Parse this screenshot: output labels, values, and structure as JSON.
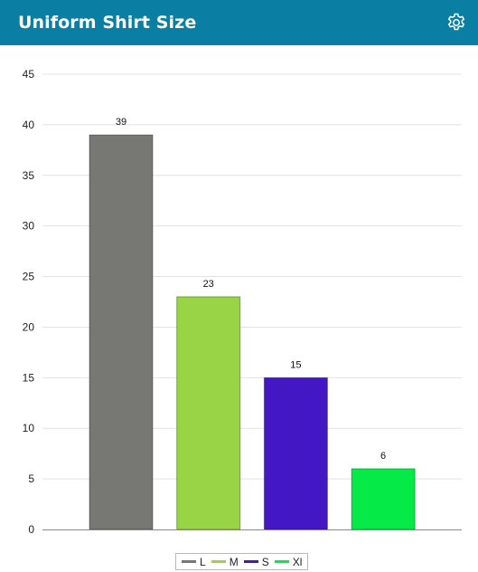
{
  "header": {
    "title": "Uniform Shirt Size",
    "background": "#0a7fa3",
    "settings_icon": "gear-icon"
  },
  "chart_data": {
    "type": "bar",
    "title": "",
    "xlabel": "",
    "ylabel": "",
    "categories": [
      "L",
      "M",
      "S",
      "Xl"
    ],
    "values": [
      39,
      23,
      15,
      6
    ],
    "colors": [
      "#777773",
      "#99d447",
      "#4318c4",
      "#06ea48"
    ],
    "ylim": [
      0,
      45
    ],
    "yticks": [
      0,
      5,
      10,
      15,
      20,
      25,
      30,
      35,
      40,
      45
    ],
    "grid": true,
    "data_labels": true,
    "legend": {
      "position": "bottom-center",
      "entries": [
        "L",
        "M",
        "S",
        "Xl"
      ]
    }
  }
}
